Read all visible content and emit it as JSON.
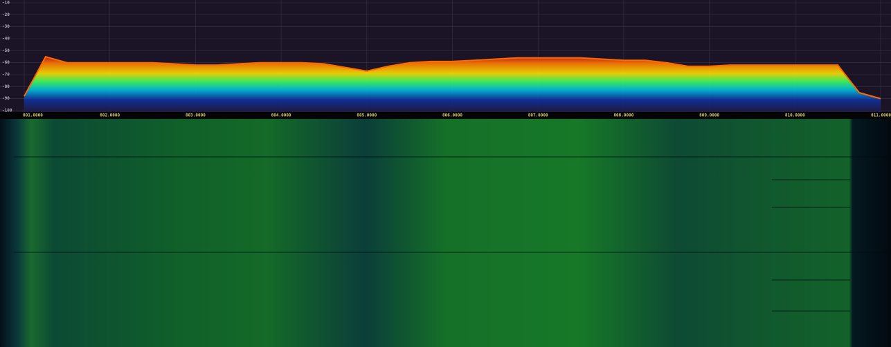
{
  "chart_data": {
    "type": "line",
    "x": [
      801,
      801.25,
      801.5,
      801.75,
      802,
      802.25,
      802.5,
      802.75,
      803,
      803.25,
      803.5,
      803.75,
      804,
      804.25,
      804.5,
      804.75,
      805,
      805.25,
      805.5,
      805.75,
      806,
      806.25,
      806.5,
      806.75,
      807,
      807.25,
      807.5,
      807.75,
      808,
      808.25,
      808.5,
      808.75,
      809,
      809.25,
      809.5,
      809.75,
      810,
      810.25,
      810.5,
      810.75,
      811
    ],
    "values": [
      -88,
      -55,
      -60,
      -60,
      -60,
      -60,
      -60,
      -61,
      -62,
      -62,
      -61,
      -60,
      -60,
      -60,
      -61,
      -64,
      -67,
      -63,
      -60,
      -59,
      -59,
      -58,
      -57,
      -56,
      -56,
      -56,
      -56,
      -57,
      -58,
      -58,
      -60,
      -63,
      -63,
      -62,
      -62,
      -62,
      -62,
      -62,
      -62,
      -85,
      -90
    ],
    "color": "#ff6a00",
    "xlim": [
      801,
      811
    ],
    "ylim": [
      -100,
      -10
    ],
    "yticks": [
      -10,
      -20,
      -30,
      -40,
      -50,
      -60,
      -70,
      -80,
      -90,
      -100
    ],
    "xticks": [
      {
        "value": 801,
        "label": "801.0000"
      },
      {
        "value": 802,
        "label": "802.0000"
      },
      {
        "value": 803,
        "label": "803.0000"
      },
      {
        "value": 804,
        "label": "804.0000"
      },
      {
        "value": 805,
        "label": "805.0000"
      },
      {
        "value": 806,
        "label": "806.0000"
      },
      {
        "value": 807,
        "label": "807.0000"
      },
      {
        "value": 808,
        "label": "808.0000"
      },
      {
        "value": 809,
        "label": "809.0000"
      },
      {
        "value": 810,
        "label": "810.0000"
      },
      {
        "value": 811,
        "label": "811.0000"
      }
    ],
    "grid": true
  }
}
